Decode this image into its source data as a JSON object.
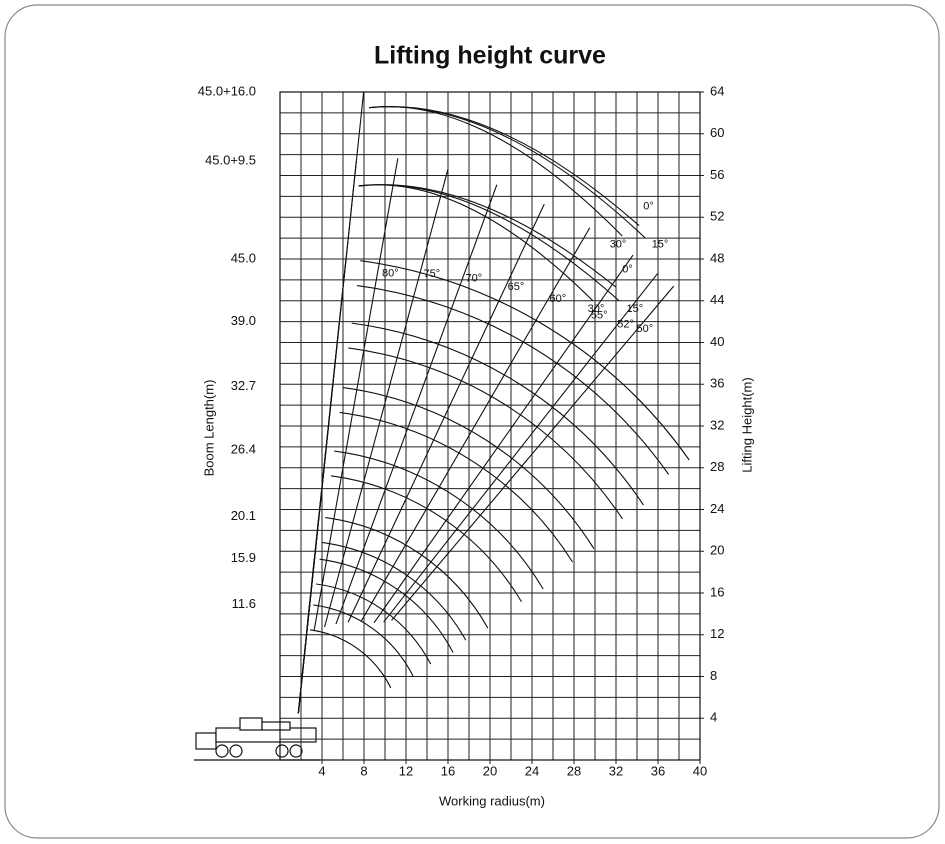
{
  "chart_data": {
    "type": "crane",
    "title": "Lifting height curve",
    "x_label": "Working radius(m)",
    "y_label": "Boom Length(m)",
    "y2_label": "Lifting Height(m)",
    "xlim": [
      0,
      40
    ],
    "xticks": [
      4,
      8,
      12,
      16,
      20,
      24,
      28,
      32,
      36,
      40
    ],
    "ylim": [
      0,
      64
    ],
    "yticks": [
      4,
      8,
      12,
      16,
      20,
      24,
      28,
      32,
      36,
      40,
      44,
      48,
      52,
      56,
      60,
      64
    ],
    "grid": true,
    "boom_lengths": [
      {
        "value": 64,
        "label": "45.0+16.0"
      },
      {
        "value": 57.4,
        "label": "45.0+9.5"
      },
      {
        "value": 48,
        "label": "45.0"
      },
      {
        "value": 42,
        "label": "39.0"
      },
      {
        "value": 35.8,
        "label": "32.7"
      },
      {
        "value": 29.7,
        "label": "26.4"
      },
      {
        "value": 23.3,
        "label": "20.1"
      },
      {
        "value": 19.3,
        "label": "15.9"
      },
      {
        "value": 14.9,
        "label": "11.6"
      }
    ],
    "boom_angles": [
      {
        "value": 80,
        "label": "80°"
      },
      {
        "value": 75,
        "label": "75°"
      },
      {
        "value": 70,
        "label": "70°"
      },
      {
        "value": 65,
        "label": "65°"
      },
      {
        "value": 60,
        "label": "60°"
      },
      {
        "value": 55,
        "label": "55°"
      },
      {
        "value": 52,
        "label": "52°"
      },
      {
        "value": 50,
        "label": "50°"
      }
    ],
    "jib_offsets": [
      [
        "0°",
        "30°",
        "15°"
      ],
      [
        "0°",
        "30°",
        "15°"
      ]
    ]
  }
}
